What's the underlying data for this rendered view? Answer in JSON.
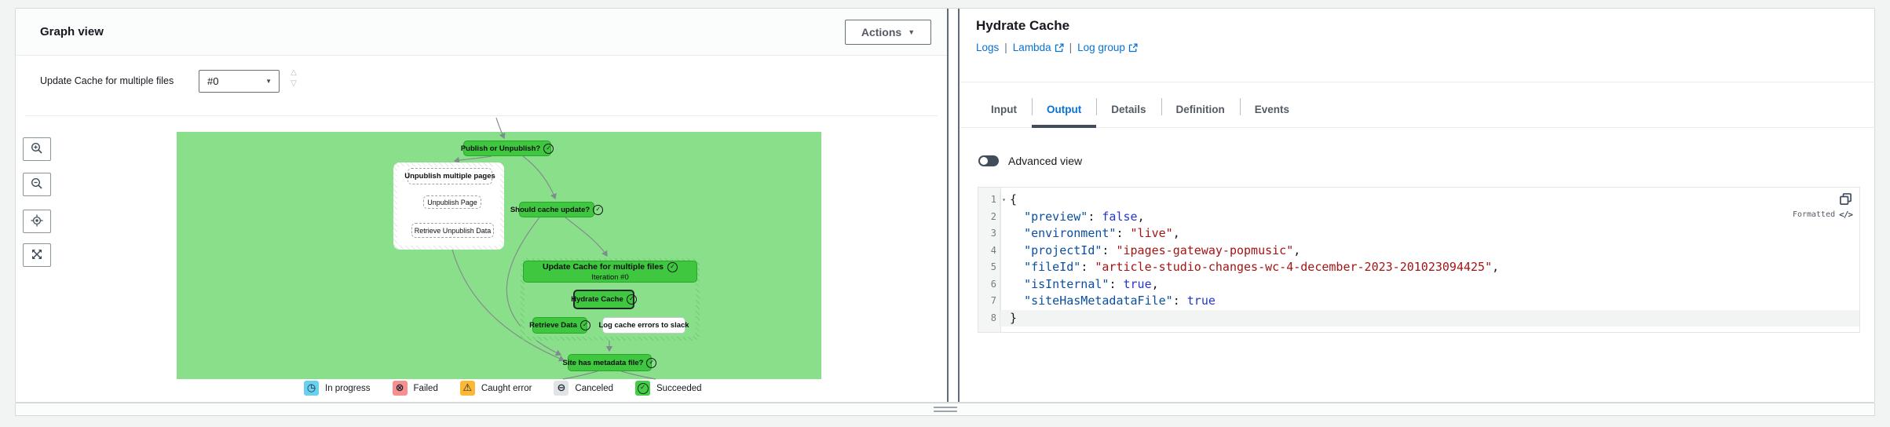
{
  "graph_panel": {
    "title": "Graph view",
    "actions_button_label": "Actions",
    "selector_label": "Update Cache for multiple files",
    "selector_value": "#0",
    "toolbar": [
      {
        "icon": "zoom-in-icon"
      },
      {
        "icon": "zoom-out-icon"
      },
      {
        "icon": "center-graph-icon"
      },
      {
        "icon": "fullscreen-icon"
      }
    ],
    "nodes": {
      "publish": "Publish or Unpublish?",
      "unpublish_group": "Unpublish multiple pages",
      "unpublish_page": "Unpublish Page",
      "retrieve_unpublish_data": "Retrieve Unpublish Data",
      "should_cache_update": "Should cache update?",
      "update_cache_group": "Update Cache for multiple files",
      "update_cache_iteration": "Iteration #0",
      "hydrate_cache": "Hydrate Cache",
      "retrieve_data": "Retrieve Data",
      "log_cache_errors": "Log cache errors to slack",
      "site_has_metadata": "Site has metadata file?"
    },
    "legend": [
      {
        "label": "In progress",
        "color": "#67d1ef",
        "icon": "clock-icon"
      },
      {
        "label": "Failed",
        "color": "#f78f8f",
        "icon": "cross-circle-icon"
      },
      {
        "label": "Caught error",
        "color": "#fbb836",
        "icon": "warning-icon"
      },
      {
        "label": "Canceled",
        "color": "#e0e4e4",
        "icon": "minus-circle-icon"
      },
      {
        "label": "Succeeded",
        "color": "#44ce44",
        "icon": "check-circle-icon"
      }
    ]
  },
  "details_panel": {
    "title": "Hydrate Cache",
    "links": [
      {
        "label": "Logs",
        "external": false
      },
      {
        "label": "Lambda",
        "external": true
      },
      {
        "label": "Log group",
        "external": true
      }
    ],
    "tabs": [
      {
        "label": "Input",
        "active": false
      },
      {
        "label": "Output",
        "active": true
      },
      {
        "label": "Details",
        "active": false
      },
      {
        "label": "Definition",
        "active": false
      },
      {
        "label": "Events",
        "active": false
      }
    ],
    "toggle_label": "Advanced view",
    "editor": {
      "formatted_label": "Formatted",
      "lines": [
        {
          "n": 1,
          "fold": true,
          "tokens": [
            {
              "t": "{",
              "y": "plain"
            }
          ]
        },
        {
          "n": 2,
          "tokens": [
            {
              "t": "  ",
              "y": "plain"
            },
            {
              "t": "\"preview\"",
              "y": "key"
            },
            {
              "t": ": ",
              "y": "plain"
            },
            {
              "t": "false",
              "y": "bool"
            },
            {
              "t": ",",
              "y": "plain"
            }
          ]
        },
        {
          "n": 3,
          "tokens": [
            {
              "t": "  ",
              "y": "plain"
            },
            {
              "t": "\"environment\"",
              "y": "key"
            },
            {
              "t": ": ",
              "y": "plain"
            },
            {
              "t": "\"live\"",
              "y": "str"
            },
            {
              "t": ",",
              "y": "plain"
            }
          ]
        },
        {
          "n": 4,
          "tokens": [
            {
              "t": "  ",
              "y": "plain"
            },
            {
              "t": "\"projectId\"",
              "y": "key"
            },
            {
              "t": ": ",
              "y": "plain"
            },
            {
              "t": "\"ipages-gateway-popmusic\"",
              "y": "str"
            },
            {
              "t": ",",
              "y": "plain"
            }
          ]
        },
        {
          "n": 5,
          "tokens": [
            {
              "t": "  ",
              "y": "plain"
            },
            {
              "t": "\"fileId\"",
              "y": "key"
            },
            {
              "t": ": ",
              "y": "plain"
            },
            {
              "t": "\"article-studio-changes-wc-4-december-2023-201023094425\"",
              "y": "str"
            },
            {
              "t": ",",
              "y": "plain"
            }
          ]
        },
        {
          "n": 6,
          "tokens": [
            {
              "t": "  ",
              "y": "plain"
            },
            {
              "t": "\"isInternal\"",
              "y": "key"
            },
            {
              "t": ": ",
              "y": "plain"
            },
            {
              "t": "true",
              "y": "bool"
            },
            {
              "t": ",",
              "y": "plain"
            }
          ]
        },
        {
          "n": 7,
          "tokens": [
            {
              "t": "  ",
              "y": "plain"
            },
            {
              "t": "\"siteHasMetadataFile\"",
              "y": "key"
            },
            {
              "t": ": ",
              "y": "plain"
            },
            {
              "t": "true",
              "y": "bool"
            }
          ]
        },
        {
          "n": 8,
          "active": true,
          "tokens": [
            {
              "t": "}",
              "y": "plain"
            }
          ]
        }
      ]
    }
  },
  "colors": {
    "accent_blue": "#0972d3",
    "node_green": "#3fc73f",
    "canvas_green": "#8ae08a",
    "page_background": "#f2f3f3"
  }
}
